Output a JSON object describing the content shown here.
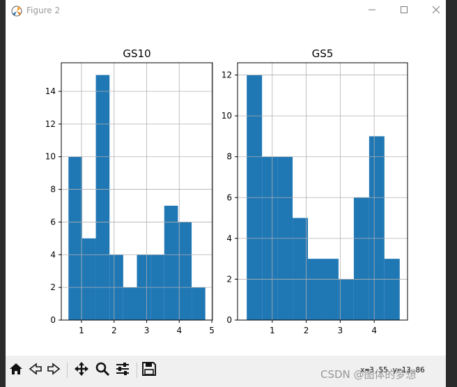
{
  "window": {
    "title": "Figure 2",
    "minimize_icon": "minimize-icon",
    "maximize_icon": "maximize-icon",
    "close_icon": "close-icon"
  },
  "toolbar": {
    "buttons": [
      "home-icon",
      "back-icon",
      "forward-icon",
      "pan-icon",
      "zoom-icon",
      "configure-subplots-icon",
      "save-icon"
    ]
  },
  "status": {
    "coords": "x=3.55 y=13.86",
    "watermark": "CSDN @图体的梦想"
  },
  "colors": {
    "bar": "#1f77b4",
    "grid": "#b0b0b0",
    "figure_bg": "#ffffff",
    "toolbar_bg": "#f0f0f0"
  },
  "chart_data": [
    {
      "type": "bar",
      "title": "GS10",
      "grid": true,
      "xlim": [
        0.38,
        5.02
      ],
      "ylim": [
        0,
        15.75
      ],
      "xticks": [
        1,
        2,
        3,
        4,
        5
      ],
      "yticks": [
        0,
        2,
        4,
        6,
        8,
        10,
        12,
        14
      ],
      "bins": [
        {
          "x0": 0.6,
          "x1": 1.02,
          "count": 10
        },
        {
          "x0": 1.02,
          "x1": 1.44,
          "count": 5
        },
        {
          "x0": 1.44,
          "x1": 1.86,
          "count": 15
        },
        {
          "x0": 1.86,
          "x1": 2.28,
          "count": 4
        },
        {
          "x0": 2.28,
          "x1": 2.7,
          "count": 2
        },
        {
          "x0": 2.7,
          "x1": 3.12,
          "count": 4
        },
        {
          "x0": 3.12,
          "x1": 3.54,
          "count": 4
        },
        {
          "x0": 3.54,
          "x1": 3.96,
          "count": 7
        },
        {
          "x0": 3.96,
          "x1": 4.38,
          "count": 6
        },
        {
          "x0": 4.38,
          "x1": 4.8,
          "count": 2
        }
      ]
    },
    {
      "type": "bar",
      "title": "GS5",
      "grid": true,
      "xlim": [
        -0.02,
        4.98
      ],
      "ylim": [
        0,
        12.6
      ],
      "xticks": [
        1,
        2,
        3,
        4
      ],
      "yticks": [
        0,
        2,
        4,
        6,
        8,
        10,
        12
      ],
      "bins": [
        {
          "x0": 0.25,
          "x1": 0.7,
          "count": 12
        },
        {
          "x0": 0.7,
          "x1": 1.15,
          "count": 8
        },
        {
          "x0": 1.15,
          "x1": 1.6,
          "count": 8
        },
        {
          "x0": 1.6,
          "x1": 2.05,
          "count": 5
        },
        {
          "x0": 2.05,
          "x1": 2.5,
          "count": 3
        },
        {
          "x0": 2.5,
          "x1": 2.95,
          "count": 3
        },
        {
          "x0": 2.95,
          "x1": 3.4,
          "count": 2
        },
        {
          "x0": 3.4,
          "x1": 3.85,
          "count": 6
        },
        {
          "x0": 3.85,
          "x1": 4.3,
          "count": 9
        },
        {
          "x0": 4.3,
          "x1": 4.75,
          "count": 3
        }
      ]
    }
  ]
}
